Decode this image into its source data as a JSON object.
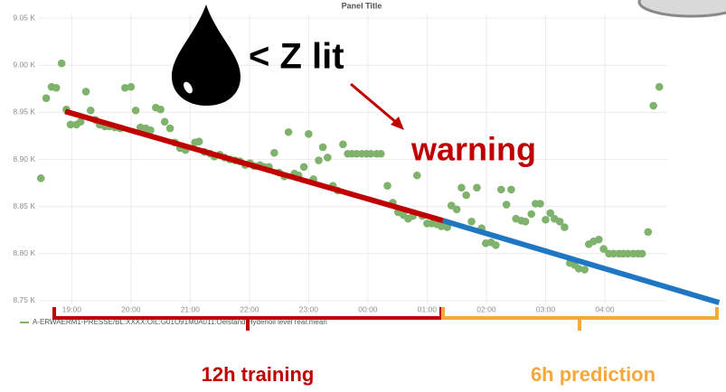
{
  "chart_data": {
    "type": "scatter",
    "title": "Panel Title",
    "x": [
      18.48,
      18.57,
      18.66,
      18.74,
      18.83,
      18.91,
      18.98,
      19.08,
      19.15,
      19.24,
      19.32,
      19.4,
      19.47,
      19.56,
      19.64,
      19.73,
      19.82,
      19.9,
      20.0,
      20.08,
      20.16,
      20.25,
      20.33,
      20.42,
      20.5,
      20.57,
      20.66,
      20.74,
      20.83,
      20.92,
      21.08,
      21.15,
      21.24,
      21.34,
      21.41,
      21.5,
      21.58,
      21.67,
      21.76,
      21.84,
      21.93,
      22.01,
      22.08,
      22.18,
      22.25,
      22.33,
      22.42,
      22.5,
      22.59,
      22.66,
      22.76,
      22.83,
      22.92,
      23.0,
      23.08,
      23.17,
      23.24,
      23.32,
      23.41,
      23.49,
      23.58,
      23.66,
      23.73,
      23.81,
      23.9,
      23.98,
      24.05,
      24.15,
      24.22,
      24.33,
      24.42,
      24.51,
      24.6,
      24.68,
      24.76,
      24.83,
      24.92,
      25.0,
      25.08,
      25.17,
      25.24,
      25.34,
      25.41,
      25.5,
      25.58,
      25.66,
      25.75,
      25.84,
      25.92,
      25.99,
      26.08,
      26.16,
      26.25,
      26.34,
      26.42,
      26.5,
      26.59,
      26.66,
      26.76,
      26.83,
      26.91,
      27.0,
      27.08,
      27.15,
      27.24,
      27.32,
      27.41,
      27.49,
      27.56,
      27.66,
      27.73,
      27.81,
      27.9,
      27.98,
      28.07,
      28.15,
      28.24,
      28.31,
      28.39,
      28.48,
      28.56,
      28.63,
      28.73,
      28.82,
      28.92
    ],
    "series": [
      {
        "name": "A-ERWAERM1-PRESSE/BL:XXXX:OIL:G01O91M0A011:Oelstand Hydenoil level rear.mean",
        "color": "#7eb26d",
        "values": [
          8880,
          8965,
          8977,
          8976,
          9002,
          8953,
          8937,
          8937,
          8940,
          8972,
          8952,
          8942,
          8937,
          8935,
          8935,
          8934,
          8933,
          8976,
          8977,
          8952,
          8934,
          8933,
          8931,
          8955,
          8953,
          8940,
          8933,
          8918,
          8912,
          8910,
          8918,
          8919,
          8908,
          8906,
          8903,
          8905,
          8902,
          8900,
          8899,
          8898,
          8894,
          8896,
          8893,
          8894,
          8892,
          8892,
          8907,
          8886,
          8882,
          8929,
          8885,
          8883,
          8892,
          8927,
          8879,
          8899,
          8913,
          8902,
          8872,
          8867,
          8916,
          8906,
          8906,
          8906,
          8906,
          8906,
          8906,
          8906,
          8906,
          8872,
          8854,
          8844,
          8841,
          8837,
          8840,
          8883,
          8840,
          8832,
          8832,
          8831,
          8829,
          8828,
          8851,
          8847,
          8870,
          8862,
          8834,
          8870,
          8827,
          8811,
          8812,
          8809,
          8868,
          8852,
          8868,
          8837,
          8835,
          8834,
          8842,
          8853,
          8853,
          8836,
          8843,
          8837,
          8834,
          8828,
          8790,
          8788,
          8784,
          8783,
          8810,
          8813,
          8815,
          8805,
          8800,
          8800,
          8800,
          8800,
          8800,
          8800,
          8800,
          8800,
          8823,
          8957,
          8977
        ]
      }
    ],
    "xlim": [
      18.4,
      30.0
    ],
    "ylim": [
      8745,
      9055
    ],
    "xticks": [
      {
        "value": 19,
        "label": "19:00"
      },
      {
        "value": 20,
        "label": "20:00"
      },
      {
        "value": 21,
        "label": "21:00"
      },
      {
        "value": 22,
        "label": "22:00"
      },
      {
        "value": 23,
        "label": "23:00"
      },
      {
        "value": 24,
        "label": "00:00"
      },
      {
        "value": 25,
        "label": "01:00"
      },
      {
        "value": 26,
        "label": "02:00"
      },
      {
        "value": 27,
        "label": "03:00"
      },
      {
        "value": 28,
        "label": "04:00"
      }
    ],
    "yticks": [
      {
        "value": 8750,
        "label": "8.75 K"
      },
      {
        "value": 8800,
        "label": "8.80 K"
      },
      {
        "value": 8850,
        "label": "8.85 K"
      },
      {
        "value": 8900,
        "label": "8.90 K"
      },
      {
        "value": 8950,
        "label": "8.95 K"
      },
      {
        "value": 9000,
        "label": "9.00 K"
      },
      {
        "value": 9050,
        "label": "9.05 K"
      }
    ],
    "grid": true,
    "trend_lines": [
      {
        "color": "#c00000",
        "x": [
          18.89,
          25.27
        ],
        "values": [
          8951,
          8835
        ]
      },
      {
        "color": "#1f77c4",
        "x": [
          25.27,
          29.93
        ],
        "values": [
          8835,
          8748
        ]
      }
    ],
    "annotations": {
      "oil_label": "< Z lit",
      "warning": "warning",
      "training": "12h training",
      "prediction": "6h prediction"
    }
  }
}
